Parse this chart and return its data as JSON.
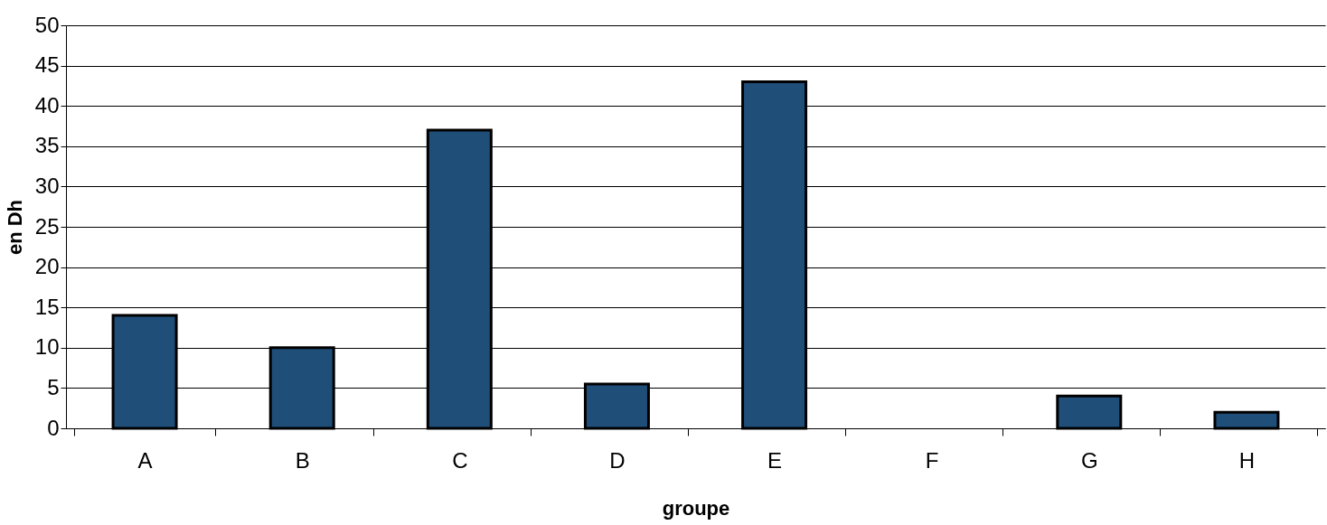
{
  "chart_data": {
    "type": "bar",
    "xlabel": "groupe",
    "ylabel": "en Dh",
    "categories": [
      "A",
      "B",
      "C",
      "D",
      "E",
      "F",
      "G",
      "H"
    ],
    "values": [
      14,
      10,
      37,
      5.5,
      43,
      null,
      4,
      2
    ],
    "color": "#1f4e79",
    "ylim": [
      0,
      50
    ],
    "yticks": [
      0,
      5,
      10,
      15,
      20,
      25,
      30,
      35,
      40,
      45,
      50
    ],
    "grid": "y"
  }
}
